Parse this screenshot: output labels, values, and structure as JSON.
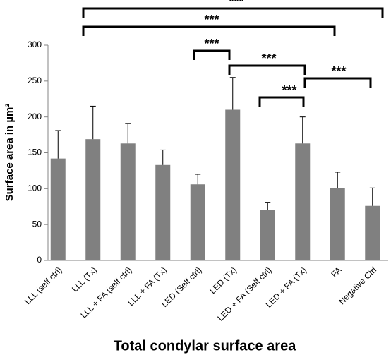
{
  "chart_data": {
    "type": "bar",
    "x_label": "Total condylar surface area",
    "y_label": "Surface area in µm²",
    "categories": [
      "LLL  (self ctrl)",
      "LLL  (Tx)",
      "LLL + FA (self ctrl)",
      "LLL + FA (Tx)",
      "LED (Self ctrl)",
      "LED (Tx)",
      "LED + FA (Self ctrl)",
      "LED + FA (Tx)",
      "FA",
      "Negative Ctrl"
    ],
    "values": [
      142,
      169,
      163,
      133,
      106,
      210,
      70,
      163,
      101,
      76
    ],
    "errors": [
      39,
      46,
      28,
      21,
      14,
      45,
      11,
      37,
      22,
      25
    ],
    "color": "#808080",
    "ylim": [
      0,
      300
    ],
    "yticks": [
      0,
      50,
      100,
      150,
      200,
      250,
      300
    ],
    "grid": false,
    "annotations": [
      "***",
      "***",
      "***",
      "***",
      "***",
      "***"
    ]
  }
}
